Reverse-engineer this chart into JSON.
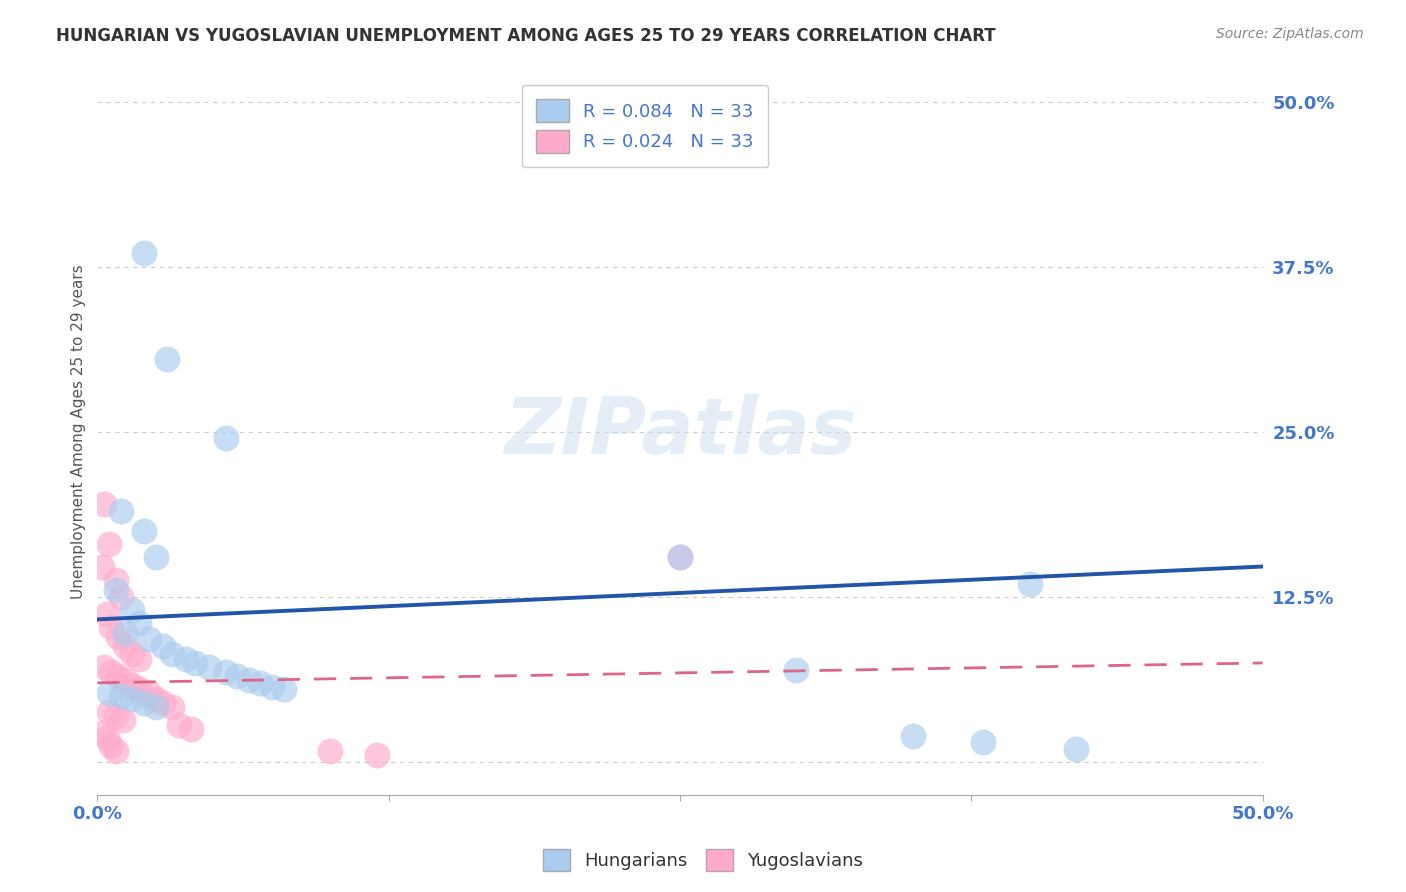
{
  "title": "HUNGARIAN VS YUGOSLAVIAN UNEMPLOYMENT AMONG AGES 25 TO 29 YEARS CORRELATION CHART",
  "source": "Source: ZipAtlas.com",
  "ylabel": "Unemployment Among Ages 25 to 29 years",
  "xlim": [
    0,
    0.5
  ],
  "ylim": [
    -0.025,
    0.525
  ],
  "ytick_right_labels": [
    "50.0%",
    "37.5%",
    "25.0%",
    "12.5%",
    ""
  ],
  "ytick_right_values": [
    0.5,
    0.375,
    0.25,
    0.125,
    0.0
  ],
  "grid_color": "#cccccc",
  "background_color": "#ffffff",
  "hungarian_color": "#aaccee",
  "yugoslav_color": "#ffaacc",
  "hungarian_line_color": "#2255aa",
  "yugoslav_line_color": "#dd6688",
  "hungarian_R": 0.084,
  "yugoslav_R": 0.024,
  "N": 33,
  "hun_line": [
    0.108,
    0.148
  ],
  "yug_line": [
    0.06,
    0.075
  ],
  "hungarian_points": [
    [
      0.02,
      0.385
    ],
    [
      0.03,
      0.305
    ],
    [
      0.055,
      0.245
    ],
    [
      0.01,
      0.19
    ],
    [
      0.02,
      0.175
    ],
    [
      0.025,
      0.155
    ],
    [
      0.008,
      0.13
    ],
    [
      0.015,
      0.115
    ],
    [
      0.018,
      0.105
    ],
    [
      0.012,
      0.098
    ],
    [
      0.022,
      0.093
    ],
    [
      0.028,
      0.088
    ],
    [
      0.032,
      0.082
    ],
    [
      0.038,
      0.078
    ],
    [
      0.042,
      0.075
    ],
    [
      0.048,
      0.072
    ],
    [
      0.055,
      0.068
    ],
    [
      0.06,
      0.065
    ],
    [
      0.065,
      0.062
    ],
    [
      0.07,
      0.06
    ],
    [
      0.075,
      0.057
    ],
    [
      0.08,
      0.055
    ],
    [
      0.005,
      0.052
    ],
    [
      0.01,
      0.05
    ],
    [
      0.015,
      0.048
    ],
    [
      0.02,
      0.045
    ],
    [
      0.025,
      0.042
    ],
    [
      0.25,
      0.155
    ],
    [
      0.3,
      0.07
    ],
    [
      0.35,
      0.02
    ],
    [
      0.38,
      0.015
    ],
    [
      0.4,
      0.135
    ],
    [
      0.42,
      0.01
    ]
  ],
  "yugoslav_points": [
    [
      0.003,
      0.195
    ],
    [
      0.005,
      0.165
    ],
    [
      0.002,
      0.148
    ],
    [
      0.008,
      0.138
    ],
    [
      0.01,
      0.125
    ],
    [
      0.004,
      0.112
    ],
    [
      0.006,
      0.102
    ],
    [
      0.009,
      0.095
    ],
    [
      0.012,
      0.088
    ],
    [
      0.015,
      0.082
    ],
    [
      0.018,
      0.078
    ],
    [
      0.003,
      0.072
    ],
    [
      0.006,
      0.068
    ],
    [
      0.009,
      0.065
    ],
    [
      0.012,
      0.062
    ],
    [
      0.015,
      0.058
    ],
    [
      0.018,
      0.055
    ],
    [
      0.022,
      0.052
    ],
    [
      0.025,
      0.048
    ],
    [
      0.028,
      0.045
    ],
    [
      0.032,
      0.042
    ],
    [
      0.005,
      0.038
    ],
    [
      0.008,
      0.035
    ],
    [
      0.011,
      0.032
    ],
    [
      0.035,
      0.028
    ],
    [
      0.04,
      0.025
    ],
    [
      0.002,
      0.022
    ],
    [
      0.004,
      0.018
    ],
    [
      0.006,
      0.012
    ],
    [
      0.008,
      0.008
    ],
    [
      0.25,
      0.155
    ],
    [
      0.1,
      0.008
    ],
    [
      0.12,
      0.005
    ]
  ]
}
